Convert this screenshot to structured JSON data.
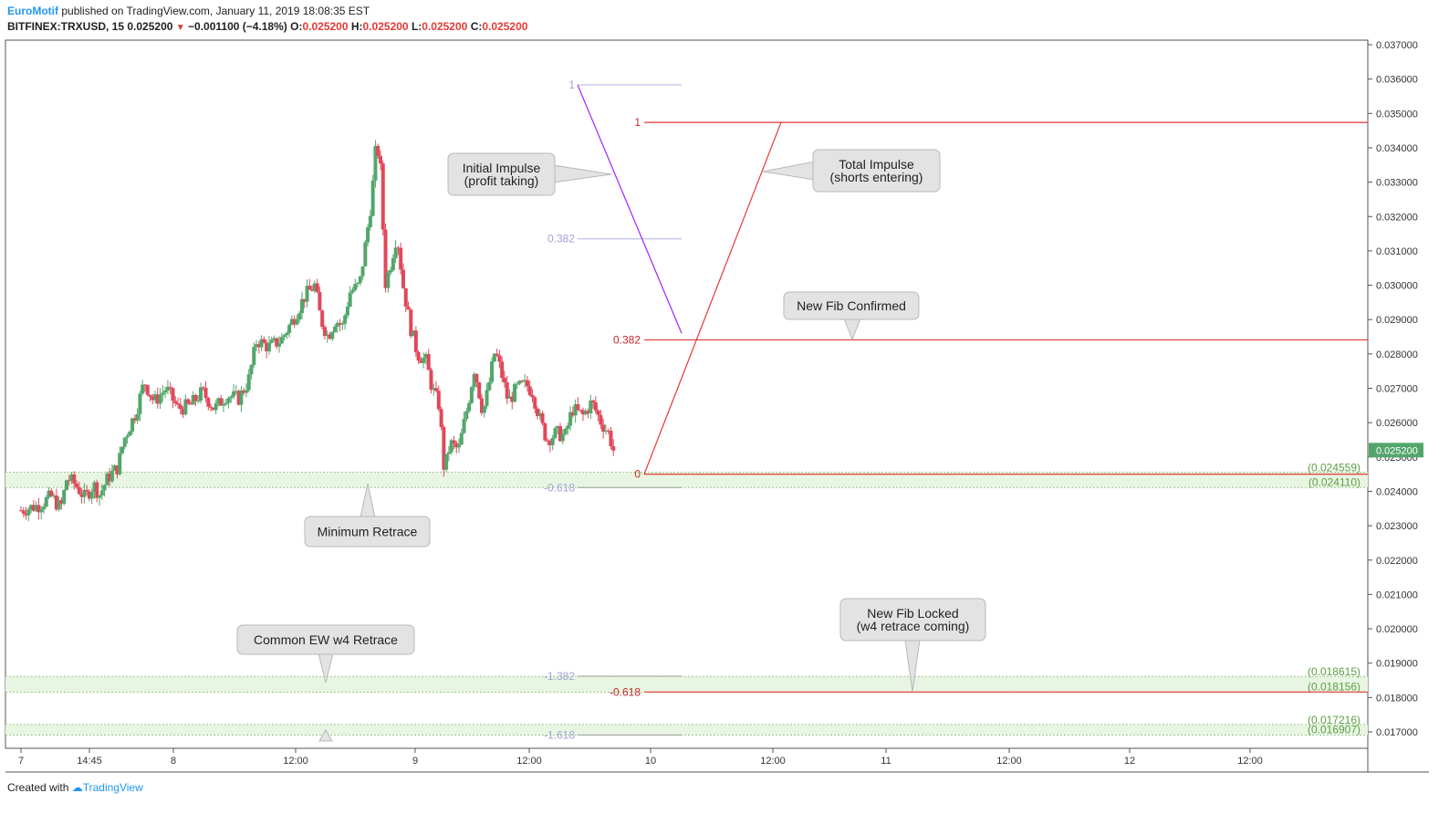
{
  "header": {
    "author": "EuroMotif",
    "published_text": "published on TradingView.com, January 11, 2019 18:08:35 EST",
    "symbol": "BITFINEX:TRXUSD, 15",
    "last": "0.025200",
    "change_arrow": "▼",
    "change": "−0.001100 (−4.18%)",
    "open_label": "O:",
    "open": "0.025200",
    "high_label": "H:",
    "high": "0.025200",
    "low_label": "L:",
    "low": "0.025200",
    "close_label": "C:",
    "close": "0.025200"
  },
  "footer": {
    "created_with": "Created with",
    "brand": "TradingView"
  },
  "colors": {
    "up": "#53a66b",
    "down": "#e0485a",
    "red_fib": "#e53935",
    "purple_fib": "#9c27ff",
    "purple_label": "#a3a0d8",
    "zone_fill": "#e9f5e3",
    "zone_label": "#5d9e45",
    "price_badge": "#53a66b"
  },
  "chart_data": {
    "type": "candlestick",
    "y_axis": {
      "min": 0.0167,
      "max": 0.0373,
      "ticks": [
        "0.037000",
        "0.036000",
        "0.035000",
        "0.034000",
        "0.033000",
        "0.032000",
        "0.031000",
        "0.030000",
        "0.029000",
        "0.028000",
        "0.027000",
        "0.026000",
        "0.025000",
        "0.024000",
        "0.023000",
        "0.022000",
        "0.021000",
        "0.020000",
        "0.019000",
        "0.018000",
        "0.017000"
      ],
      "current_price": "0.025200"
    },
    "x_axis": {
      "ticks": [
        "7",
        "14:45",
        "8",
        "12:00",
        "9",
        "12:00",
        "10",
        "12:00",
        "11",
        "12:00",
        "12",
        "12:00"
      ]
    },
    "price_path": [
      [
        0,
        0.02345
      ],
      [
        1.5,
        0.0236
      ],
      [
        2.5,
        0.02385
      ],
      [
        3.3,
        0.0235
      ],
      [
        3.8,
        0.0244
      ],
      [
        4.5,
        0.0242
      ],
      [
        5.3,
        0.0238
      ],
      [
        6.0,
        0.0242
      ],
      [
        6.5,
        0.0239
      ],
      [
        7.2,
        0.0244
      ],
      [
        8.0,
        0.0247
      ],
      [
        8.5,
        0.0255
      ],
      [
        9.5,
        0.0263
      ],
      [
        10.2,
        0.0272
      ],
      [
        11.0,
        0.0266
      ],
      [
        12.0,
        0.027
      ],
      [
        13.0,
        0.0264
      ],
      [
        14.0,
        0.0265
      ],
      [
        15.0,
        0.0269
      ],
      [
        16.0,
        0.0264
      ],
      [
        17.0,
        0.0268
      ],
      [
        18.0,
        0.0267
      ],
      [
        18.8,
        0.0272
      ],
      [
        19.5,
        0.0284
      ],
      [
        20.5,
        0.0282
      ],
      [
        21.5,
        0.0284
      ],
      [
        22.5,
        0.029
      ],
      [
        23.5,
        0.0297
      ],
      [
        24.3,
        0.03
      ],
      [
        24.8,
        0.029
      ],
      [
        25.4,
        0.0285
      ],
      [
        26.0,
        0.029
      ],
      [
        26.6,
        0.0288
      ],
      [
        27.2,
        0.0298
      ],
      [
        28.0,
        0.03
      ],
      [
        28.5,
        0.0312
      ],
      [
        29.0,
        0.0325
      ],
      [
        29.4,
        0.0342
      ],
      [
        29.8,
        0.0332
      ],
      [
        30.1,
        0.03
      ],
      [
        30.5,
        0.0305
      ],
      [
        31.1,
        0.0315
      ],
      [
        31.6,
        0.03
      ],
      [
        32.2,
        0.0288
      ],
      [
        32.8,
        0.028
      ],
      [
        33.5,
        0.0278
      ],
      [
        34.0,
        0.027
      ],
      [
        34.6,
        0.0265
      ],
      [
        35.0,
        0.0246
      ],
      [
        35.5,
        0.0254
      ],
      [
        36.2,
        0.0252
      ],
      [
        37.0,
        0.0266
      ],
      [
        37.5,
        0.0276
      ],
      [
        38.2,
        0.0263
      ],
      [
        38.6,
        0.0269
      ],
      [
        39.2,
        0.0281
      ],
      [
        39.7,
        0.0275
      ],
      [
        40.3,
        0.0266
      ],
      [
        41.0,
        0.027
      ],
      [
        41.8,
        0.0271
      ],
      [
        42.3,
        0.0269
      ],
      [
        43.0,
        0.026
      ],
      [
        43.5,
        0.0255
      ],
      [
        44.3,
        0.0257
      ],
      [
        45.0,
        0.0256
      ],
      [
        45.6,
        0.0264
      ],
      [
        46.5,
        0.0262
      ],
      [
        47.2,
        0.0266
      ],
      [
        48.0,
        0.026
      ],
      [
        48.6,
        0.0257
      ],
      [
        49.0,
        0.0252
      ]
    ],
    "fib_red": {
      "levels": [
        {
          "label": "1",
          "value": 0.03474
        },
        {
          "label": "0.382",
          "value": 0.02841
        },
        {
          "label": "0",
          "value": 0.0245
        },
        {
          "label": "-0.618",
          "value": 0.01816
        }
      ]
    },
    "fib_purple": {
      "levels": [
        {
          "label": "1",
          "value": 0.03583
        },
        {
          "label": "0.382",
          "value": 0.03135
        },
        {
          "label": "-0.618",
          "value": 0.02411
        },
        {
          "label": "-1.382",
          "value": 0.01862
        },
        {
          "label": "-1.618",
          "value": 0.01691
        }
      ]
    },
    "zones": [
      {
        "top": "(0.024559)",
        "bottom": "(0.024110)",
        "top_value": 0.024559,
        "bottom_value": 0.02411
      },
      {
        "top": "(0.018615)",
        "bottom": "(0.018156)",
        "top_value": 0.018615,
        "bottom_value": 0.018156
      },
      {
        "top": "(0.017216)",
        "bottom": "(0.016907)",
        "top_value": 0.017216,
        "bottom_value": 0.016907
      }
    ]
  },
  "annotations": {
    "initial_impulse": [
      "Initial Impulse",
      "(profit taking)"
    ],
    "total_impulse": [
      "Total Impulse",
      "(shorts entering)"
    ],
    "new_fib_confirmed": "New Fib Confirmed",
    "minimum_retrace": "Minimum Retrace",
    "common_ew": "Common EW w4 Retrace",
    "new_fib_locked": [
      "New Fib Locked",
      "(w4 retrace coming)"
    ]
  }
}
